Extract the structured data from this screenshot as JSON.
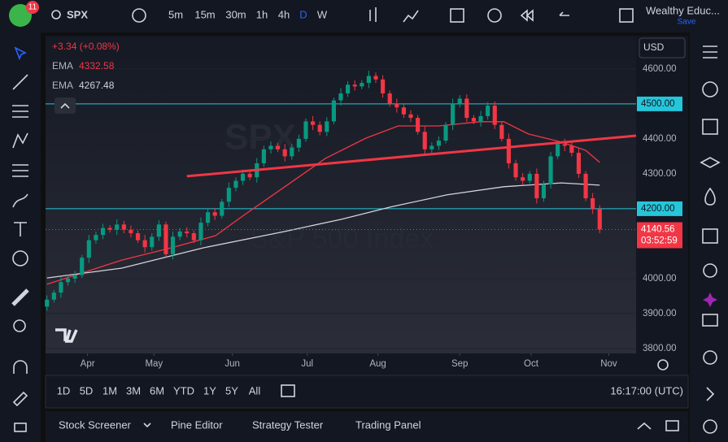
{
  "toolbar": {
    "badge": "11",
    "symbol": "SPX",
    "intervals": [
      "5m",
      "15m",
      "30m",
      "1h",
      "4h",
      "D",
      "W"
    ],
    "account": "Wealthy Educ...",
    "save": "Save"
  },
  "chart_data": {
    "type": "candlestick",
    "watermark": {
      "symbol": "SPX",
      "name": "S&P 500 Index"
    },
    "change": "+3.34 (+0.08%)",
    "currency": "USD",
    "countdown": "03:52:59",
    "up_color": "#089981",
    "down_color": "#f23645",
    "open": [
      3920,
      3940,
      3960,
      3990,
      4000,
      4010,
      4060,
      4110,
      4125,
      4145,
      4140,
      4155,
      4140,
      4130,
      4110,
      4090,
      4120,
      4155,
      4070,
      4120,
      4135,
      4130,
      4110,
      4160,
      4190,
      4180,
      4220,
      4260,
      4280,
      4300,
      4290,
      4330,
      4370,
      4380,
      4370,
      4350,
      4375,
      4400,
      4450,
      4440,
      4420,
      4450,
      4510,
      4530,
      4555,
      4550,
      4560,
      4580,
      4570,
      4530,
      4500,
      4490,
      4470,
      4460,
      4420,
      4370,
      4380,
      4395,
      4440,
      4500,
      4515,
      4460,
      4450,
      4465,
      4495,
      4440,
      4400,
      4330,
      4290,
      4280,
      4300,
      4230,
      4270,
      4350,
      4385,
      4380,
      4360,
      4300,
      4230,
      4200
    ],
    "high": [
      3952,
      3968,
      4005,
      4010,
      4022,
      4068,
      4125,
      4135,
      4157,
      4153,
      4170,
      4165,
      4152,
      4138,
      4125,
      4130,
      4167,
      4163,
      4135,
      4145,
      4147,
      4138,
      4175,
      4200,
      4202,
      4228,
      4275,
      4290,
      4312,
      4308,
      4345,
      4380,
      4392,
      4388,
      4385,
      4385,
      4412,
      4458,
      4465,
      4450,
      4462,
      4518,
      4545,
      4565,
      4567,
      4568,
      4595,
      4590,
      4582,
      4538,
      4515,
      4500,
      4482,
      4468,
      4435,
      4390,
      4407,
      4448,
      4515,
      4525,
      4527,
      4468,
      4480,
      4505,
      4507,
      4448,
      4415,
      4340,
      4302,
      4308,
      4315,
      4280,
      4362,
      4393,
      4400,
      4390,
      4372,
      4308,
      4245,
      4210
    ],
    "low": [
      3908,
      3932,
      3945,
      3980,
      3988,
      4002,
      4045,
      4100,
      4113,
      4132,
      4125,
      4130,
      4118,
      4102,
      4075,
      4080,
      4108,
      4062,
      4055,
      4110,
      4118,
      4102,
      4095,
      4150,
      4168,
      4172,
      4205,
      4250,
      4268,
      4282,
      4275,
      4320,
      4358,
      4362,
      4335,
      4340,
      4363,
      4392,
      4425,
      4410,
      4408,
      4442,
      4495,
      4520,
      4538,
      4542,
      4545,
      4560,
      4518,
      4492,
      4475,
      4460,
      4448,
      4412,
      4355,
      4360,
      4368,
      4387,
      4425,
      4490,
      4448,
      4442,
      4435,
      4455,
      4428,
      4392,
      4315,
      4280,
      4268,
      4272,
      4215,
      4220,
      4258,
      4342,
      4365,
      4350,
      4288,
      4222,
      4185,
      4130
    ],
    "close": [
      3940,
      3960,
      3990,
      4000,
      4010,
      4060,
      4110,
      4125,
      4145,
      4140,
      4155,
      4140,
      4130,
      4110,
      4090,
      4120,
      4155,
      4070,
      4120,
      4135,
      4130,
      4110,
      4160,
      4190,
      4180,
      4220,
      4260,
      4280,
      4300,
      4290,
      4330,
      4370,
      4380,
      4370,
      4350,
      4375,
      4400,
      4450,
      4440,
      4420,
      4450,
      4510,
      4530,
      4555,
      4550,
      4560,
      4580,
      4570,
      4530,
      4500,
      4490,
      4470,
      4460,
      4420,
      4370,
      4380,
      4395,
      4440,
      4500,
      4515,
      4460,
      4450,
      4465,
      4495,
      4440,
      4400,
      4330,
      4290,
      4280,
      4300,
      4230,
      4270,
      4350,
      4385,
      4380,
      4360,
      4300,
      4230,
      4200,
      4140.56
    ],
    "series": [
      {
        "name": "EMA",
        "color": "#f23645",
        "x": [
          0,
          10.7,
          17.7,
          24.1,
          28.1,
          34,
          39.8,
          45.6,
          50.2,
          56,
          61.9,
          65.3,
          68.8,
          73.5,
          77,
          79
        ],
        "values": [
          3984,
          4053,
          4088,
          4123,
          4181,
          4263,
          4344,
          4402,
          4437,
          4437,
          4449,
          4449,
          4414,
          4391,
          4367,
          4332.58
        ]
      },
      {
        "name": "EMA",
        "color": "#d1d4dc",
        "x": [
          0,
          10.7,
          22.3,
          34,
          42.1,
          49.1,
          57.2,
          65.3,
          73.5,
          79
        ],
        "values": [
          4002,
          4030,
          4088,
          4135,
          4170,
          4205,
          4240,
          4263,
          4274,
          4267.48
        ]
      }
    ],
    "trendline": {
      "color": "#f23645",
      "x": [
        20,
        84.2
      ],
      "values": [
        4293,
        4409
      ]
    },
    "levels": [
      {
        "value": 4500,
        "label": "4500.00",
        "color": "#26c6da"
      },
      {
        "value": 4200,
        "label": "4200.00",
        "color": "#26c6da"
      }
    ],
    "xlim": [
      -0.2,
      84.2
    ],
    "xticks": [
      {
        "value": 5.8,
        "label": "Apr"
      },
      {
        "value": 15.3,
        "label": "May"
      },
      {
        "value": 26.5,
        "label": "Jun"
      },
      {
        "value": 37.2,
        "label": "Jul"
      },
      {
        "value": 47.3,
        "label": "Aug"
      },
      {
        "value": 59,
        "label": "Sep"
      },
      {
        "value": 69.2,
        "label": "Oct"
      },
      {
        "value": 80.3,
        "label": "Nov"
      }
    ],
    "ylim": [
      3786,
      4695
    ],
    "yticks": [
      {
        "value": 4600,
        "label": "4600.00"
      },
      {
        "value": 4400,
        "label": "4400.00"
      },
      {
        "value": 4300,
        "label": "4300.00"
      },
      {
        "value": 4000,
        "label": "4000.00"
      },
      {
        "value": 3900,
        "label": "3900.00"
      },
      {
        "value": 3800,
        "label": "3800.00"
      }
    ]
  },
  "range_bar": {
    "ranges": [
      "1D",
      "5D",
      "1M",
      "3M",
      "6M",
      "YTD",
      "1Y",
      "5Y",
      "All"
    ],
    "time": "16:17:00 (UTC)"
  },
  "panel_tabs": [
    "Stock Screener",
    "Pine Editor",
    "Strategy Tester",
    "Trading Panel"
  ]
}
